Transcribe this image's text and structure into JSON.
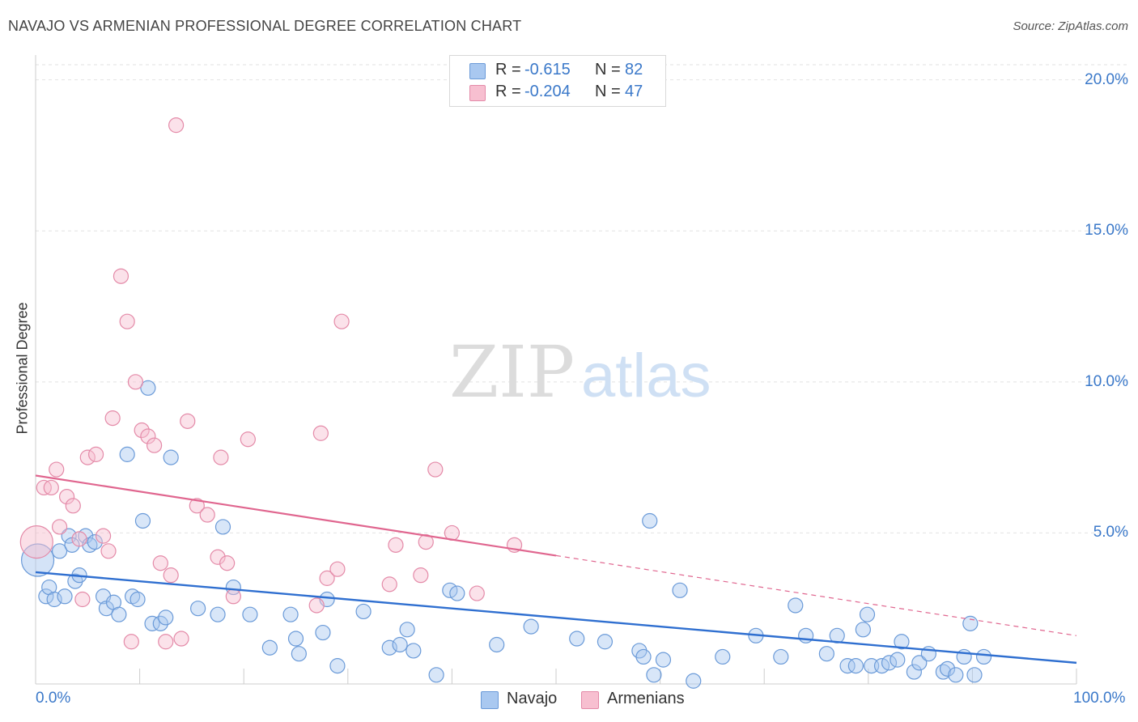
{
  "title": "NAVAJO VS ARMENIAN PROFESSIONAL DEGREE CORRELATION CHART",
  "source": "Source: ZipAtlas.com",
  "watermark": {
    "zip": "ZIP",
    "atlas": "atlas"
  },
  "legend": [
    {
      "r_label": "R =",
      "r_value": "-0.615",
      "n_label": "N =",
      "n_value": "82",
      "color": "#a9c8f0",
      "border": "#6a9ad8"
    },
    {
      "r_label": "R =",
      "r_value": "-0.204",
      "n_label": "N =",
      "n_value": "47",
      "color": "#f7bfd0",
      "border": "#e48aa8"
    }
  ],
  "bottom_legend": [
    {
      "label": "Navajo",
      "color": "#a9c8f0",
      "border": "#6a9ad8"
    },
    {
      "label": "Armenians",
      "color": "#f7bfd0",
      "border": "#e48aa8"
    }
  ],
  "chart_data": {
    "type": "scatter",
    "title": "NAVAJO VS ARMENIAN PROFESSIONAL DEGREE CORRELATION CHART",
    "xlabel": "",
    "ylabel": "Professional Degree",
    "xlim": [
      0,
      100
    ],
    "ylim": [
      0,
      20.5
    ],
    "x_tick_labels": [
      "0.0%",
      "100.0%"
    ],
    "y_ticks": [
      5,
      10,
      15,
      20
    ],
    "y_tick_labels": [
      "5.0%",
      "10.0%",
      "15.0%",
      "20.0%"
    ],
    "grid": true,
    "series": [
      {
        "name": "Navajo",
        "color": "#6a9ad8",
        "fill": "#a9c8f0",
        "line_color": "#2f6fd0",
        "trend": {
          "x0": 0,
          "y0": 3.7,
          "x1": 100,
          "y1": 0.7,
          "dashed_from": null
        },
        "points": [
          [
            0.2,
            4.1
          ],
          [
            1.0,
            2.9
          ],
          [
            1.3,
            3.2
          ],
          [
            1.8,
            2.8
          ],
          [
            2.3,
            4.4
          ],
          [
            2.8,
            2.9
          ],
          [
            3.2,
            4.9
          ],
          [
            3.5,
            4.6
          ],
          [
            3.8,
            3.4
          ],
          [
            4.2,
            3.6
          ],
          [
            4.8,
            4.9
          ],
          [
            5.2,
            4.6
          ],
          [
            5.7,
            4.7
          ],
          [
            6.5,
            2.9
          ],
          [
            6.8,
            2.5
          ],
          [
            7.5,
            2.7
          ],
          [
            8.0,
            2.3
          ],
          [
            8.8,
            7.6
          ],
          [
            9.3,
            2.9
          ],
          [
            9.8,
            2.8
          ],
          [
            10.3,
            5.4
          ],
          [
            10.8,
            9.8
          ],
          [
            11.2,
            2.0
          ],
          [
            12.0,
            2.0
          ],
          [
            12.5,
            2.2
          ],
          [
            13.0,
            7.5
          ],
          [
            15.6,
            2.5
          ],
          [
            17.5,
            2.3
          ],
          [
            18.0,
            5.2
          ],
          [
            19.0,
            3.2
          ],
          [
            20.6,
            2.3
          ],
          [
            22.5,
            1.2
          ],
          [
            24.5,
            2.3
          ],
          [
            25.0,
            1.5
          ],
          [
            25.3,
            1.0
          ],
          [
            27.6,
            1.7
          ],
          [
            28.0,
            2.8
          ],
          [
            29.0,
            0.6
          ],
          [
            31.5,
            2.4
          ],
          [
            34.0,
            1.2
          ],
          [
            35.0,
            1.3
          ],
          [
            35.7,
            1.8
          ],
          [
            36.3,
            1.1
          ],
          [
            38.5,
            0.3
          ],
          [
            39.8,
            3.1
          ],
          [
            40.5,
            3.0
          ],
          [
            44.3,
            1.3
          ],
          [
            47.6,
            1.9
          ],
          [
            52.0,
            1.5
          ],
          [
            54.7,
            1.4
          ],
          [
            58.0,
            1.1
          ],
          [
            58.4,
            0.9
          ],
          [
            59.0,
            5.4
          ],
          [
            59.4,
            0.3
          ],
          [
            60.3,
            0.8
          ],
          [
            61.9,
            3.1
          ],
          [
            63.2,
            0.1
          ],
          [
            66.0,
            0.9
          ],
          [
            69.2,
            1.6
          ],
          [
            71.6,
            0.9
          ],
          [
            73.0,
            2.6
          ],
          [
            74.0,
            1.6
          ],
          [
            76.0,
            1.0
          ],
          [
            77.0,
            1.6
          ],
          [
            78.0,
            0.6
          ],
          [
            78.8,
            0.6
          ],
          [
            79.5,
            1.8
          ],
          [
            79.9,
            2.3
          ],
          [
            80.3,
            0.6
          ],
          [
            81.3,
            0.6
          ],
          [
            82.0,
            0.7
          ],
          [
            82.8,
            0.8
          ],
          [
            83.2,
            1.4
          ],
          [
            84.4,
            0.4
          ],
          [
            84.9,
            0.7
          ],
          [
            85.8,
            1.0
          ],
          [
            87.2,
            0.4
          ],
          [
            87.6,
            0.5
          ],
          [
            88.4,
            0.3
          ],
          [
            89.2,
            0.9
          ],
          [
            89.8,
            2.0
          ],
          [
            90.2,
            0.3
          ],
          [
            91.1,
            0.9
          ]
        ]
      },
      {
        "name": "Armenians",
        "color": "#e48aa8",
        "fill": "#f7bfd0",
        "line_color": "#e0668f",
        "trend": {
          "x0": 0,
          "y0": 6.9,
          "x1": 100,
          "y1": 1.6,
          "dashed_from": 50
        },
        "points": [
          [
            0.1,
            4.7
          ],
          [
            0.8,
            6.5
          ],
          [
            1.5,
            6.5
          ],
          [
            2.0,
            7.1
          ],
          [
            2.3,
            5.2
          ],
          [
            3.0,
            6.2
          ],
          [
            3.6,
            5.9
          ],
          [
            4.2,
            4.8
          ],
          [
            4.5,
            2.8
          ],
          [
            5.0,
            7.5
          ],
          [
            5.8,
            7.6
          ],
          [
            6.5,
            4.9
          ],
          [
            7.0,
            4.4
          ],
          [
            7.4,
            8.8
          ],
          [
            8.2,
            13.5
          ],
          [
            8.8,
            12.0
          ],
          [
            9.2,
            1.4
          ],
          [
            9.6,
            10.0
          ],
          [
            10.2,
            8.4
          ],
          [
            10.8,
            8.2
          ],
          [
            11.4,
            7.9
          ],
          [
            12.0,
            4.0
          ],
          [
            12.5,
            1.4
          ],
          [
            13.0,
            3.6
          ],
          [
            13.5,
            18.5
          ],
          [
            14.0,
            1.5
          ],
          [
            14.6,
            8.7
          ],
          [
            15.5,
            5.9
          ],
          [
            16.5,
            5.6
          ],
          [
            17.5,
            4.2
          ],
          [
            17.8,
            7.5
          ],
          [
            18.4,
            4.0
          ],
          [
            19.0,
            2.9
          ],
          [
            20.4,
            8.1
          ],
          [
            27.0,
            2.6
          ],
          [
            27.4,
            8.3
          ],
          [
            28.0,
            3.5
          ],
          [
            29.0,
            3.8
          ],
          [
            29.4,
            12.0
          ],
          [
            34.0,
            3.3
          ],
          [
            34.6,
            4.6
          ],
          [
            37.0,
            3.6
          ],
          [
            37.5,
            4.7
          ],
          [
            38.4,
            7.1
          ],
          [
            40.0,
            5.0
          ],
          [
            42.4,
            3.0
          ],
          [
            46.0,
            4.6
          ]
        ]
      }
    ]
  }
}
